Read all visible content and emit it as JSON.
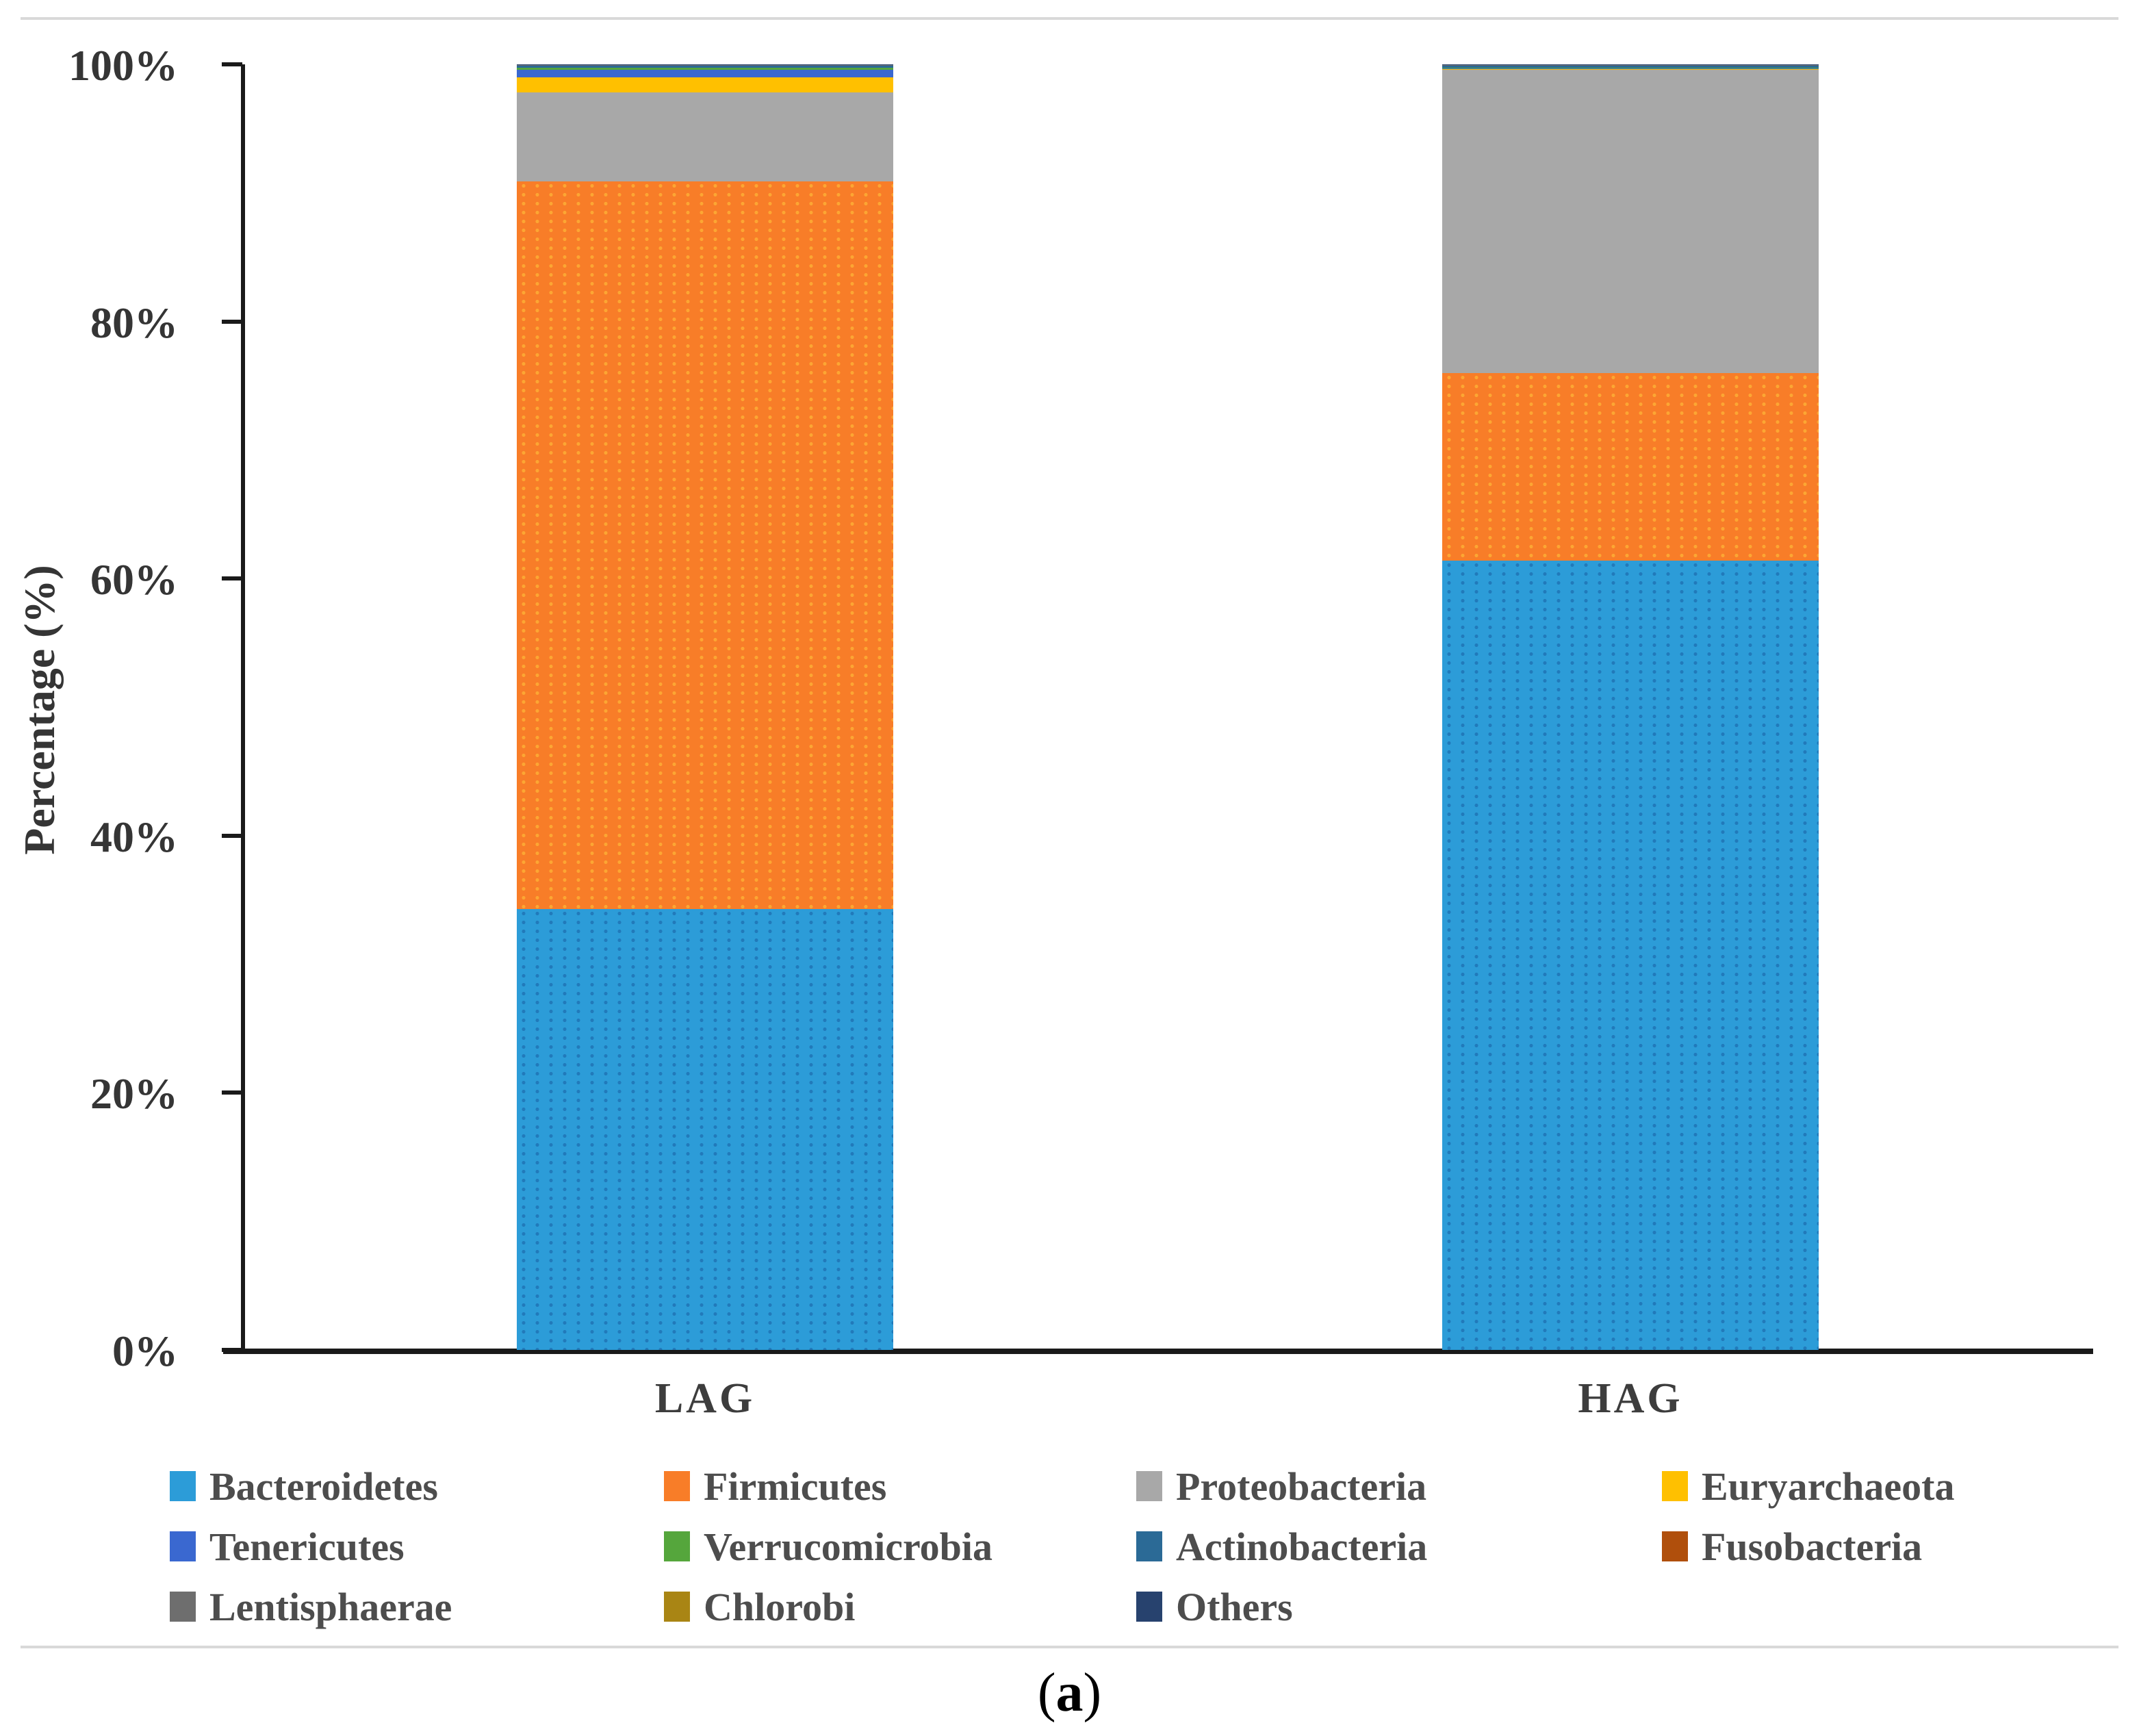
{
  "page": {
    "caption": {
      "open": "(",
      "label": "a",
      "close": ")"
    }
  },
  "chart_data": {
    "type": "bar",
    "subtype": "stacked-percentage-column",
    "title": "",
    "ylabel": "Percentage (%)",
    "xlabel": "",
    "categories": [
      "LAG",
      "HAG"
    ],
    "y_ticks": [
      "0%",
      "20%",
      "40%",
      "60%",
      "80%",
      "100%"
    ],
    "ylim": [
      0,
      100
    ],
    "grid": false,
    "legend_position": "bottom",
    "series": [
      {
        "name": "Bacteroidetes",
        "color": "#2C9CD8",
        "values": [
          34.3,
          61.4
        ]
      },
      {
        "name": "Firmicutes",
        "color": "#F87D28",
        "values": [
          56.6,
          14.6
        ]
      },
      {
        "name": "Proteobacteria",
        "color": "#A8A8A8",
        "values": [
          6.9,
          23.6
        ]
      },
      {
        "name": "Euryarchaeota",
        "color": "#FFC000",
        "values": [
          1.2,
          0.05
        ]
      },
      {
        "name": "Tenericutes",
        "color": "#3A68D0",
        "values": [
          0.6,
          0.05
        ]
      },
      {
        "name": "Verrucomicrobia",
        "color": "#55A63C",
        "values": [
          0.15,
          0.03
        ]
      },
      {
        "name": "Actinobacteria",
        "color": "#2B6A96",
        "values": [
          0.15,
          0.2
        ]
      },
      {
        "name": "Fusobacteria",
        "color": "#B04F0C",
        "values": [
          0.03,
          0.02
        ]
      },
      {
        "name": "Lentisphaerae",
        "color": "#6E6E6E",
        "values": [
          0.03,
          0.02
        ]
      },
      {
        "name": "Chlorobi",
        "color": "#A98514",
        "values": [
          0.02,
          0.01
        ]
      },
      {
        "name": "Others",
        "color": "#27426E",
        "values": [
          0.02,
          0.02
        ]
      }
    ]
  }
}
